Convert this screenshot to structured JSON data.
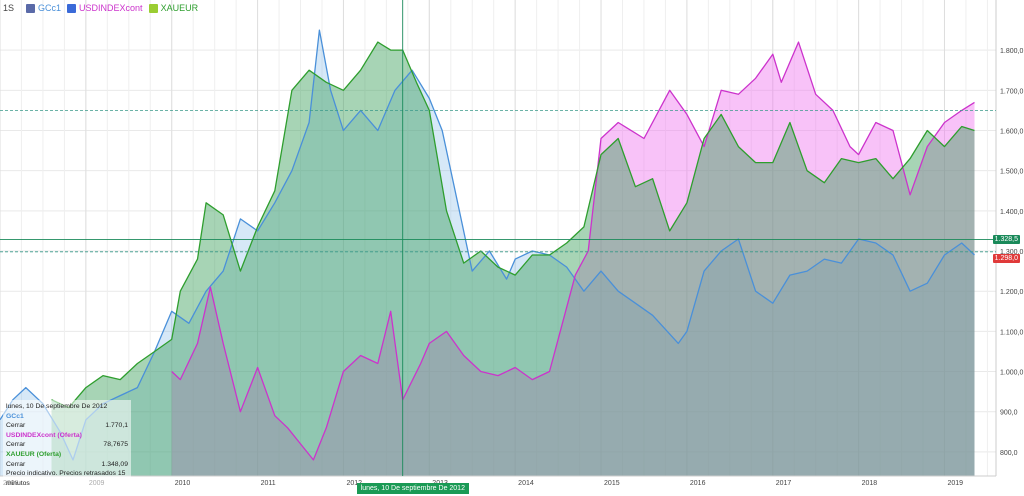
{
  "toolbar": {
    "timeframe": "1S",
    "symbols": [
      {
        "label": "GCc1",
        "color": "#4a90d9"
      },
      {
        "label": "USDINDEXcont",
        "color": "#cc33cc"
      },
      {
        "label": "XAUEUR",
        "color": "#2e9e2e"
      }
    ]
  },
  "tooltip": {
    "date": "lunes, 10 De septiembre De 2012",
    "items": [
      {
        "name": "GCc1",
        "field": "Cerrar",
        "value": "1.770,1",
        "color": "#4a90d9"
      },
      {
        "name": "USDINDEXcont (Oferta)",
        "field": "Cerrar",
        "value": "78,7675",
        "color": "#cc33cc"
      },
      {
        "name": "XAUEUR (Oferta)",
        "field": "Cerrar",
        "value": "1.348,09",
        "color": "#2e9e2e"
      }
    ],
    "note": "Precio indicativo. Precios retrasados 15 minutos"
  },
  "cursor_label": "lunes, 10 De septiembre De 2012",
  "price_tags": [
    {
      "value": "1.328,5",
      "color": "#1a8a5a"
    },
    {
      "value": "1.298,0",
      "color": "#e03a3a"
    }
  ],
  "chart_data": {
    "type": "area",
    "x_ticks": [
      "2008",
      "2009",
      "2010",
      "2011",
      "2012",
      "2013",
      "2014",
      "2015",
      "2016",
      "2017",
      "2018",
      "2019"
    ],
    "y_ticks": [
      "800,0",
      "900,0",
      "1.000,0",
      "1.100,0",
      "1.200,0",
      "1.300,0",
      "1.400,0",
      "1.500,0",
      "1.600,0",
      "1.700,0",
      "1.800,0"
    ],
    "ylim": [
      740,
      1880
    ],
    "xlim": [
      2008.0,
      2019.6
    ],
    "reference_lines": [
      1650,
      1298
    ],
    "crosshair_x": 2012.69,
    "crosshair_y": 1328.5,
    "series": [
      {
        "name": "GCc1",
        "color": "#4a90d9",
        "fill": "rgba(120,180,230,0.30)",
        "x": [
          2008.0,
          2008.15,
          2008.3,
          2008.5,
          2008.7,
          2008.85,
          2009.0,
          2009.2,
          2009.4,
          2009.6,
          2009.8,
          2010.0,
          2010.2,
          2010.4,
          2010.6,
          2010.8,
          2011.0,
          2011.2,
          2011.4,
          2011.6,
          2011.72,
          2011.85,
          2012.0,
          2012.2,
          2012.4,
          2012.6,
          2012.8,
          2013.0,
          2013.15,
          2013.3,
          2013.5,
          2013.7,
          2013.9,
          2014.0,
          2014.2,
          2014.4,
          2014.6,
          2014.8,
          2015.0,
          2015.2,
          2015.4,
          2015.6,
          2015.9,
          2016.0,
          2016.2,
          2016.4,
          2016.6,
          2016.8,
          2017.0,
          2017.2,
          2017.4,
          2017.6,
          2017.8,
          2018.0,
          2018.2,
          2018.4,
          2018.6,
          2018.8,
          2019.0,
          2019.2,
          2019.35
        ],
        "y": [
          880,
          930,
          960,
          920,
          850,
          780,
          880,
          920,
          940,
          960,
          1050,
          1150,
          1120,
          1200,
          1250,
          1380,
          1350,
          1420,
          1500,
          1620,
          1850,
          1700,
          1600,
          1650,
          1600,
          1700,
          1750,
          1680,
          1600,
          1450,
          1250,
          1300,
          1230,
          1280,
          1300,
          1290,
          1260,
          1200,
          1250,
          1200,
          1170,
          1140,
          1070,
          1100,
          1250,
          1300,
          1330,
          1200,
          1170,
          1240,
          1250,
          1280,
          1270,
          1330,
          1320,
          1290,
          1200,
          1220,
          1290,
          1320,
          1290
        ]
      },
      {
        "name": "USDINDEXcont",
        "color": "#cc33cc",
        "fill": "rgba(240,120,240,0.45)",
        "x": [
          2010.0,
          2010.1,
          2010.3,
          2010.45,
          2010.6,
          2010.8,
          2011.0,
          2011.2,
          2011.35,
          2011.5,
          2011.65,
          2011.8,
          2012.0,
          2012.2,
          2012.4,
          2012.55,
          2012.69,
          2012.9,
          2013.0,
          2013.2,
          2013.4,
          2013.6,
          2013.8,
          2014.0,
          2014.2,
          2014.4,
          2014.5,
          2014.7,
          2014.85,
          2015.0,
          2015.2,
          2015.5,
          2015.8,
          2016.0,
          2016.2,
          2016.4,
          2016.6,
          2016.8,
          2017.0,
          2017.1,
          2017.3,
          2017.5,
          2017.7,
          2017.9,
          2018.0,
          2018.2,
          2018.4,
          2018.6,
          2018.8,
          2019.0,
          2019.2,
          2019.35
        ],
        "y": [
          1000,
          980,
          1070,
          1210,
          1070,
          900,
          1010,
          890,
          860,
          820,
          780,
          860,
          1000,
          1040,
          1020,
          1150,
          930,
          1020,
          1070,
          1100,
          1040,
          1000,
          990,
          1010,
          980,
          1000,
          1080,
          1240,
          1300,
          1580,
          1620,
          1580,
          1700,
          1640,
          1560,
          1700,
          1690,
          1730,
          1790,
          1720,
          1820,
          1690,
          1650,
          1560,
          1540,
          1620,
          1600,
          1440,
          1560,
          1620,
          1650,
          1670
        ]
      },
      {
        "name": "XAUEUR",
        "color": "#2e9e2e",
        "fill": "rgba(60,160,90,0.45)",
        "x": [
          2008.6,
          2008.8,
          2009.0,
          2009.2,
          2009.4,
          2009.6,
          2009.8,
          2010.0,
          2010.1,
          2010.3,
          2010.4,
          2010.6,
          2010.8,
          2011.0,
          2011.2,
          2011.4,
          2011.6,
          2011.8,
          2012.0,
          2012.2,
          2012.4,
          2012.55,
          2012.69,
          2012.85,
          2013.0,
          2013.2,
          2013.4,
          2013.6,
          2013.8,
          2014.0,
          2014.2,
          2014.4,
          2014.6,
          2014.8,
          2015.0,
          2015.2,
          2015.4,
          2015.6,
          2015.8,
          2016.0,
          2016.2,
          2016.4,
          2016.6,
          2016.8,
          2017.0,
          2017.2,
          2017.4,
          2017.6,
          2017.8,
          2018.0,
          2018.2,
          2018.4,
          2018.6,
          2018.8,
          2019.0,
          2019.2,
          2019.35
        ],
        "y": [
          930,
          910,
          960,
          990,
          980,
          1020,
          1050,
          1080,
          1200,
          1280,
          1420,
          1390,
          1250,
          1360,
          1450,
          1700,
          1750,
          1720,
          1700,
          1750,
          1820,
          1800,
          1800,
          1720,
          1650,
          1400,
          1270,
          1300,
          1260,
          1240,
          1290,
          1290,
          1320,
          1360,
          1540,
          1580,
          1460,
          1480,
          1350,
          1420,
          1580,
          1640,
          1560,
          1520,
          1520,
          1620,
          1500,
          1470,
          1530,
          1520,
          1530,
          1480,
          1530,
          1600,
          1560,
          1610,
          1600
        ]
      }
    ]
  }
}
